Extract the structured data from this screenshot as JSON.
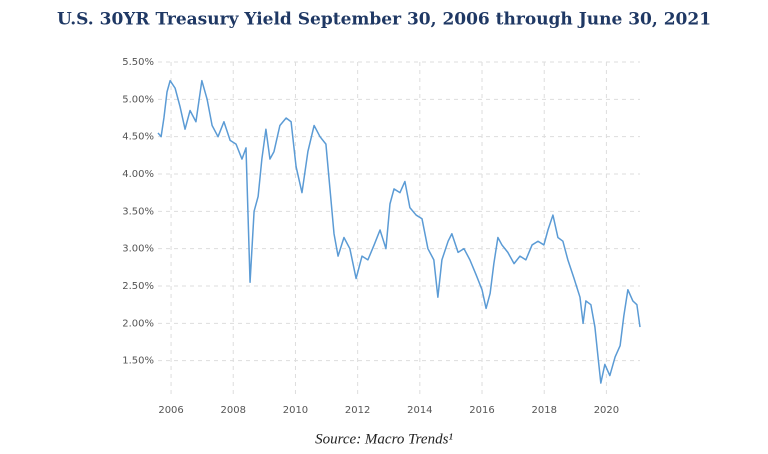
{
  "chart_data": {
    "type": "line",
    "title": "U.S. 30YR Treasury Yield September 30, 2006 through June 30, 2021",
    "source": "Source: Macro Trends¹",
    "x": [
      2005.58,
      2005.68,
      2005.77,
      2005.87,
      2005.97,
      2006.13,
      2006.29,
      2006.45,
      2006.61,
      2006.8,
      2006.99,
      2007.16,
      2007.32,
      2007.51,
      2007.7,
      2007.9,
      2008.09,
      2008.28,
      2008.41,
      2008.54,
      2008.67,
      2008.8,
      2008.92,
      2009.05,
      2009.18,
      2009.31,
      2009.5,
      2009.7,
      2009.86,
      2010.02,
      2010.21,
      2010.4,
      2010.6,
      2010.79,
      2010.98,
      2011.11,
      2011.24,
      2011.37,
      2011.56,
      2011.75,
      2011.95,
      2012.14,
      2012.33,
      2012.53,
      2012.72,
      2012.91,
      2013.04,
      2013.17,
      2013.36,
      2013.52,
      2013.68,
      2013.88,
      2014.07,
      2014.26,
      2014.45,
      2014.58,
      2014.71,
      2014.91,
      2015.03,
      2015.23,
      2015.42,
      2015.61,
      2015.81,
      2016.0,
      2016.13,
      2016.26,
      2016.38,
      2016.51,
      2016.64,
      2016.83,
      2017.03,
      2017.22,
      2017.41,
      2017.61,
      2017.8,
      2017.99,
      2018.12,
      2018.28,
      2018.44,
      2018.6,
      2018.76,
      2018.96,
      2019.15,
      2019.25,
      2019.34,
      2019.5,
      2019.63,
      2019.73,
      2019.82,
      2019.95,
      2020.11,
      2020.28,
      2020.44,
      2020.56,
      2020.69,
      2020.85,
      2020.98,
      2021.08
    ],
    "series": [
      {
        "name": "30YR Treasury Yield",
        "color": "#5b9bd5",
        "values": [
          4.55,
          4.5,
          4.75,
          5.1,
          5.25,
          5.15,
          4.9,
          4.6,
          4.85,
          4.7,
          5.25,
          5.0,
          4.65,
          4.5,
          4.7,
          4.45,
          4.4,
          4.2,
          4.35,
          2.55,
          3.5,
          3.7,
          4.2,
          4.6,
          4.2,
          4.3,
          4.65,
          4.75,
          4.7,
          4.1,
          3.75,
          4.3,
          4.65,
          4.5,
          4.4,
          3.8,
          3.2,
          2.9,
          3.15,
          3.0,
          2.6,
          2.9,
          2.85,
          3.05,
          3.25,
          3.0,
          3.6,
          3.8,
          3.75,
          3.9,
          3.55,
          3.45,
          3.4,
          3.0,
          2.85,
          2.35,
          2.85,
          3.1,
          3.2,
          2.95,
          3.0,
          2.85,
          2.65,
          2.45,
          2.2,
          2.4,
          2.8,
          3.15,
          3.05,
          2.95,
          2.8,
          2.9,
          2.85,
          3.05,
          3.1,
          3.05,
          3.25,
          3.45,
          3.15,
          3.1,
          2.85,
          2.6,
          2.35,
          2.0,
          2.3,
          2.25,
          1.95,
          1.55,
          1.2,
          1.45,
          1.3,
          1.55,
          1.7,
          2.1,
          2.45,
          2.3,
          2.25,
          1.95
        ]
      }
    ],
    "xlim": [
      2005.58,
      2021.08
    ],
    "xticks": [
      2006,
      2008,
      2010,
      2012,
      2014,
      2016,
      2018,
      2020
    ],
    "ylim": [
      1.0,
      5.5
    ],
    "yticks": [
      {
        "value": 1.5,
        "label": "1.50%"
      },
      {
        "value": 2.0,
        "label": "2.00%"
      },
      {
        "value": 2.5,
        "label": "2.50%"
      },
      {
        "value": 3.0,
        "label": "3.00%"
      },
      {
        "value": 3.5,
        "label": "3.50%"
      },
      {
        "value": 4.0,
        "label": "4.00%"
      },
      {
        "value": 4.5,
        "label": "4.50%"
      },
      {
        "value": 5.0,
        "label": "5.00%"
      },
      {
        "value": 5.5,
        "label": "5.50%"
      }
    ],
    "grid": true
  }
}
